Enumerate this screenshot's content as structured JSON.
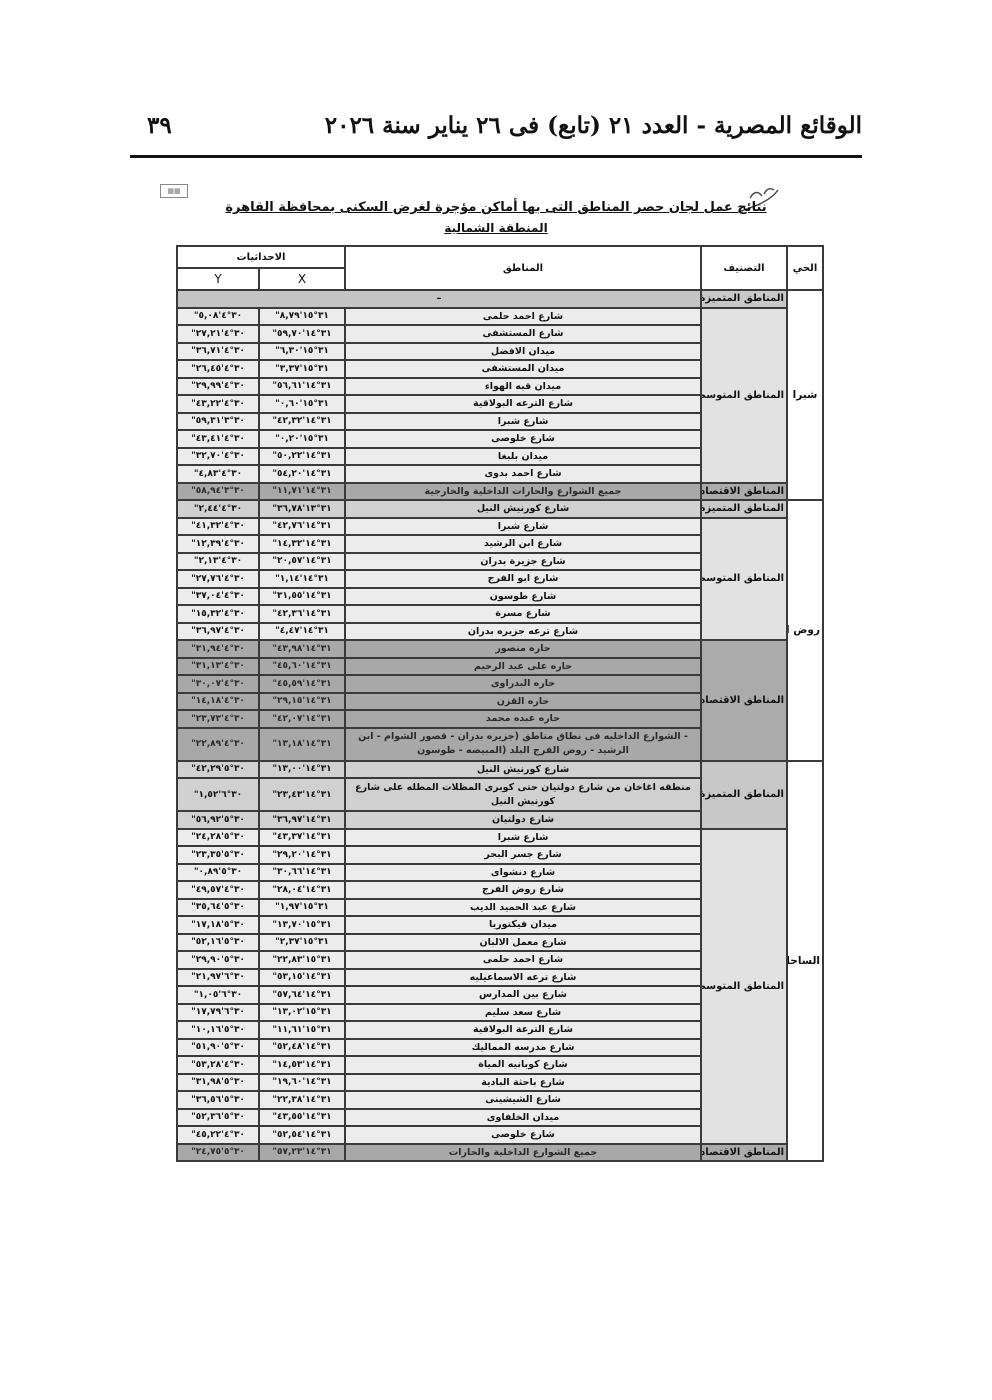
{
  "header": {
    "publication": "الوقائع المصرية - العدد ٢١ (تابع) فى ٢٦ يناير سنة ٢٠٢٦",
    "page_number": "٣٩"
  },
  "title": "نتائج عمل لجان حصر المناطق التى بها أماكن مؤجرة لغرض السكنى بمحافظة القاهرة",
  "subtitle": "المنطقة الشمالية",
  "table": {
    "headers": {
      "district": "الحي",
      "classification": "التصنيف",
      "areas": "المناطق",
      "coordinates": "الاحداثيات",
      "x": "X",
      "y": "Y"
    },
    "districts": [
      {
        "name": "شبرا",
        "groups": [
          {
            "classification": "المناطق المتميزة",
            "type": "mut",
            "empty": "–",
            "rows": []
          },
          {
            "classification": "المناطق المتوسطة",
            "type": "med",
            "rows": [
              {
                "name": "شارع احمد حلمى",
                "x": "٣١°١٥'٨,٧٩\"",
                "y": "٣٠°٤'٥,٠٨\""
              },
              {
                "name": "شارع المستشفى",
                "x": "٣١°١٤'٥٩,٧٠\"",
                "y": "٣٠°٤'٢٧,٢١\""
              },
              {
                "name": "ميدان الافضل",
                "x": "٣١°١٥'٦,٣٠\"",
                "y": "٣٠°٤'٣٦,٧١\""
              },
              {
                "name": "ميدان المستشفى",
                "x": "٣١°١٥'٣,٣٧\"",
                "y": "٣٠°٤'٢٦,٤٥\""
              },
              {
                "name": "ميدان قبه الهواء",
                "x": "٣١°١٤'٥٦,٦١\"",
                "y": "٣٠°٤'٢٩,٩٩\""
              },
              {
                "name": "شارع الترعه البولاقية",
                "x": "٣١°١٥'٠,٦٠\"",
                "y": "٣٠°٤'٤٣,٢٢\""
              },
              {
                "name": "شارع شبرا",
                "x": "٣١°١٤'٤٢,٣٢\"",
                "y": "٣٠°٣'٥٩,٣١\""
              },
              {
                "name": "شارع خلوصى",
                "x": "٣١°١٥'٠,٢٠\"",
                "y": "٣٠°٤'٤٣,٤١\""
              },
              {
                "name": "ميدان بلبغا",
                "x": "٣١°١٤'٥٠,٢٢\"",
                "y": "٣٠°٤'٣٢,٧٠\""
              },
              {
                "name": "شارع احمد بدوى",
                "x": "٣١°١٤'٥٤,٢٠\"",
                "y": "٣٠°٤'٤,٨٣\""
              }
            ]
          },
          {
            "classification": "المناطق الاقتصادية",
            "type": "eco",
            "rows": [
              {
                "name": "جميع الشوارع والحارات الداخلية والخارجية",
                "x": "٣١°١٤'١١,٧١\"",
                "y": "٣٠°٣'٥٨,٩٤\""
              }
            ]
          }
        ]
      },
      {
        "name": "روض الفرج",
        "groups": [
          {
            "classification": "المناطق المتميزة",
            "type": "mut",
            "rows": [
              {
                "name": "شارع كورنيش النيل",
                "x": "٣١°١٣'٣٦,٧٨\"",
                "y": "٣٠°٤'٢,٤٤\""
              }
            ]
          },
          {
            "classification": "المناطق المتوسطة",
            "type": "med",
            "rows": [
              {
                "name": "شارع شبرا",
                "x": "٣١°١٤'٤٢,٧٦\"",
                "y": "٣٠°٤'٤١,٣٢\""
              },
              {
                "name": "شارع ابن الرشيد",
                "x": "٣١°١٤'١٤,٣٢\"",
                "y": "٣٠°٤'١٢,٣٩\""
              },
              {
                "name": "شارع جزيرة بدران",
                "x": "٣١°١٤'٢٠,٥٧\"",
                "y": "٣٠°٤'٢,١٣\""
              },
              {
                "name": "شارع ابو الفرج",
                "x": "٣١°١٤'١,١٤\"",
                "y": "٣٠°٤'٢٧,٧٦\""
              },
              {
                "name": "شارع طوسون",
                "x": "٣١°١٤'٣١,٥٥\"",
                "y": "٣٠°٤'٣٧,٠٤\""
              },
              {
                "name": "شارع مسرة",
                "x": "٣١°١٤'٤٢,٣٦\"",
                "y": "٣٠°٤'١٥,٣٢\""
              },
              {
                "name": "شارع ترعه جزيره بدران",
                "x": "٣١°١٤'٤,٤٧\"",
                "y": "٣٠°٤'٣٦,٩٧\""
              }
            ]
          },
          {
            "classification": "المناطق الاقتصادية",
            "type": "eco",
            "rows": [
              {
                "name": "حاره منصور",
                "x": "٣١°١٤'٤٣,٩٨\"",
                "y": "٣٠°٤'٣١,٩٤\""
              },
              {
                "name": "حاره على عبد الرحيم",
                "x": "٣١°١٤'٤٥,٦٠\"",
                "y": "٣٠°٤'٣١,١٣\""
              },
              {
                "name": "حاره البدراوى",
                "x": "٣١°١٤'٤٥,٥٩\"",
                "y": "٣٠°٤'٣٠,٠٧\""
              },
              {
                "name": "حاره القزن",
                "x": "٣١°١٤'٢٩,١٥\"",
                "y": "٣٠°٤'١٤,١٨\""
              },
              {
                "name": "حاره عبده محمد",
                "x": "٣١°١٤'٤٢,٠٧\"",
                "y": "٣٠°٤'٢٣,٧٣\""
              },
              {
                "name": "- الشوارع الداخليه فى نطاق مناطق (جزيره بدران - قصور الشوام - ابن الرشيد - روض الفرج البلد (المبيضه - طوسون",
                "x": "٣١°١٤'١٣,١٨\"",
                "y": "٣٠°٤'٢٢,٨٩\"",
                "tall": true
              }
            ]
          }
        ]
      },
      {
        "name": "الساحل",
        "groups": [
          {
            "classification": "المناطق المتميزة",
            "type": "mut",
            "rows": [
              {
                "name": "شارع كورنيش النيل",
                "x": "٣١°١٤'١٣,٠٠\"",
                "y": "٣٠°٥'٤٢,٢٩\""
              },
              {
                "name": "منطقه اغاخان من شارع دولتيان حتى كوبرى المظلات المطله على شارع كورنيش النيل",
                "x": "٣١°١٤'٢٣,٤٣\"",
                "y": "٣٠°٦'١,٥٢\"",
                "tall": true
              },
              {
                "name": "شارع دولتيان",
                "x": "٣١°١٤'٣٦,٩٧\"",
                "y": "٣٠°٥'٥٦,٩٢\""
              }
            ]
          },
          {
            "classification": "المناطق المتوسطة",
            "type": "med",
            "rows": [
              {
                "name": "شارع شبرا",
                "x": "٣١°١٤'٤٣,٣٧\"",
                "y": "٣٠°٥'٢٤,٢٨\""
              },
              {
                "name": "شارع جسر البحر",
                "x": "٣١°١٤'٢٩,٢٠\"",
                "y": "٣٠°٥'٢٣,٣٥\""
              },
              {
                "name": "شارع دنشواى",
                "x": "٣١°١٤'٣٠,٦٦\"",
                "y": "٣٠°٥'٠,٨٩\""
              },
              {
                "name": "شارع روض الفرج",
                "x": "٣١°١٤'٢٨,٠٤\"",
                "y": "٣٠°٤'٤٩,٥٧\""
              },
              {
                "name": "شارع عبد الحميد الديب",
                "x": "٣١°١٥'١,٩٧\"",
                "y": "٣٠°٥'٣٥,٦٤\""
              },
              {
                "name": "ميدان فيكتوريا",
                "x": "٣١°١٥'١٣,٧٠\"",
                "y": "٣٠°٥'١٧,١٨\""
              },
              {
                "name": "شارع معمل الالبان",
                "x": "٣١°١٥'٢,٣٧\"",
                "y": "٣٠°٥'٥٢,١٦\""
              },
              {
                "name": "شارع احمد حلمى",
                "x": "٣١°١٥'٢٢,٨٣\"",
                "y": "٣٠°٥'٢٩,٩٠\""
              },
              {
                "name": "شارع ترعه الاسماعيليه",
                "x": "٣١°١٤'٥٣,١٥\"",
                "y": "٣٠°٦'٢١,٩٧\""
              },
              {
                "name": "شارع بين المدارس",
                "x": "٣١°١٤'٥٧,٦٤\"",
                "y": "٣٠°٦'١,٠٥\""
              },
              {
                "name": "شارع سعد سليم",
                "x": "٣١°١٥'١٣,٠٢\"",
                "y": "٣٠°٦'١٧,٧٩\""
              },
              {
                "name": "شارع الترعة البولاقية",
                "x": "٣١°١٥'١١,٦١\"",
                "y": "٣٠°٥'١٠,١٦\""
              },
              {
                "name": "شارع مدرسه المماليك",
                "x": "٣١°١٤'٥٢,٤٨\"",
                "y": "٣٠°٥'٥١,٩٠\""
              },
              {
                "name": "شارع كوبانيه المياة",
                "x": "٣١°١٤'١٤,٥٣\"",
                "y": "٣٠°٤'٥٣,٢٨\""
              },
              {
                "name": "شارع باحثة البادية",
                "x": "٣١°١٤'١٩,٦٠\"",
                "y": "٣٠°٥'٣١,٩٨\""
              },
              {
                "name": "شارع الشيشينى",
                "x": "٣١°١٤'٢٢,٣٨\"",
                "y": "٣٠°٥'٣٦,٥٦\""
              },
              {
                "name": "ميدان الخلفاوى",
                "x": "٣١°١٤'٤٣,٥٥\"",
                "y": "٣٠°٥'٥٢,٣٦\""
              },
              {
                "name": "شارع خلوصى",
                "x": "٣١°١٤'٥٢,٥٤\"",
                "y": "٣٠°٤'٤٥,٢٢\""
              }
            ]
          },
          {
            "classification": "المناطق الاقتصادية",
            "type": "eco",
            "rows": [
              {
                "name": "جميع الشوارع الداخلية والحارات",
                "x": "٣١°١٤'٥٧,٢٣\"",
                "y": "٣٠°٥'٢٤,٧٥\""
              }
            ]
          }
        ]
      }
    ]
  }
}
